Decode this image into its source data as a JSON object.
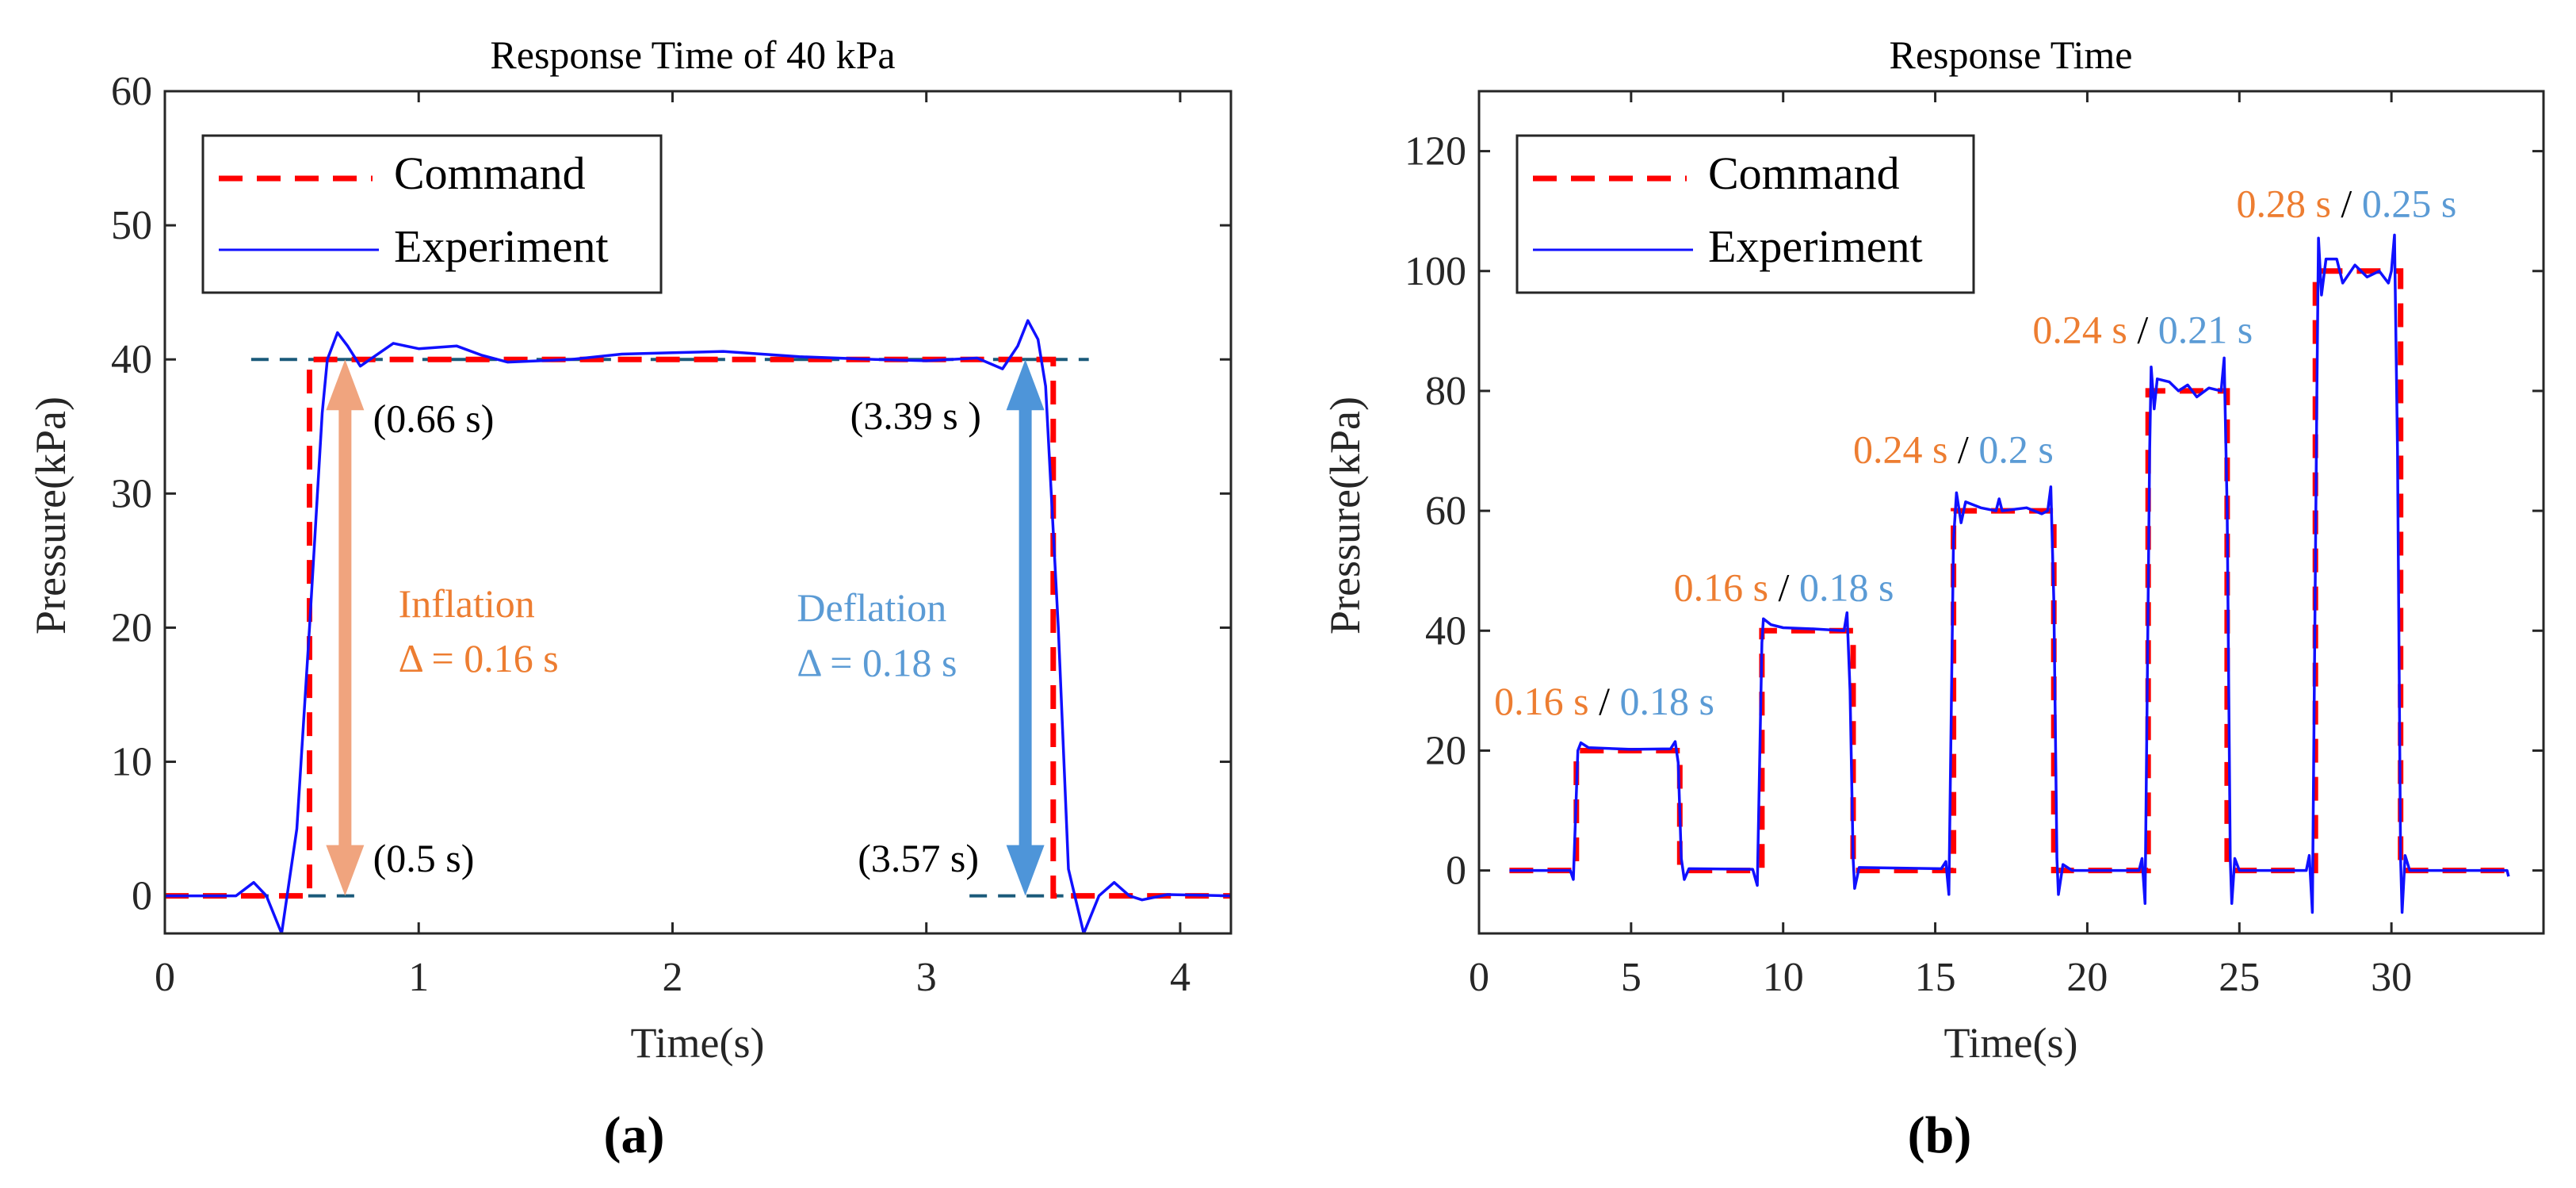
{
  "colors": {
    "command": "#ff0000",
    "experiment": "#1010ff",
    "reference": "#1a5a7a",
    "inflation": "#f0a47e",
    "inflation_text": "#ed7d31",
    "deflation": "#4e95d9",
    "deflation_text": "#5b9bd5",
    "axis": "#262626"
  },
  "chart_data": [
    {
      "type": "line",
      "panel_label": "(a)",
      "title": "Response Time of 40 kPa",
      "xlabel": "Time(s)",
      "ylabel": "Pressure(kPa)",
      "xlim": [
        0,
        4.2
      ],
      "ylim": [
        -2.8,
        60
      ],
      "xticks": [
        0,
        1,
        2,
        3,
        4
      ],
      "yticks": [
        0,
        10,
        20,
        30,
        40,
        50,
        60
      ],
      "grid": false,
      "legend": {
        "placement": "top-left",
        "entries": [
          "Command",
          "Experiment"
        ]
      },
      "series": [
        {
          "name": "Command",
          "style": "dashed",
          "points": [
            [
              0,
              0
            ],
            [
              0.57,
              0
            ],
            [
              0.57,
              40
            ],
            [
              3.5,
              40
            ],
            [
              3.5,
              0
            ],
            [
              4.2,
              0
            ]
          ]
        },
        {
          "name": "Experiment",
          "style": "solid",
          "points": [
            [
              0,
              0
            ],
            [
              0.28,
              0
            ],
            [
              0.35,
              1
            ],
            [
              0.4,
              0
            ],
            [
              0.46,
              -2.8
            ],
            [
              0.52,
              5
            ],
            [
              0.57,
              20
            ],
            [
              0.62,
              36
            ],
            [
              0.64,
              40
            ],
            [
              0.68,
              42
            ],
            [
              0.72,
              41
            ],
            [
              0.77,
              39.5
            ],
            [
              0.9,
              41.2
            ],
            [
              1.0,
              40.8
            ],
            [
              1.15,
              41
            ],
            [
              1.25,
              40.3
            ],
            [
              1.35,
              39.8
            ],
            [
              1.6,
              40
            ],
            [
              1.8,
              40.4
            ],
            [
              2.0,
              40.5
            ],
            [
              2.2,
              40.6
            ],
            [
              2.5,
              40.2
            ],
            [
              2.8,
              40
            ],
            [
              3.0,
              39.9
            ],
            [
              3.2,
              40.1
            ],
            [
              3.3,
              39.3
            ],
            [
              3.36,
              41
            ],
            [
              3.4,
              42.9
            ],
            [
              3.44,
              41.5
            ],
            [
              3.47,
              38
            ],
            [
              3.52,
              20
            ],
            [
              3.56,
              2
            ],
            [
              3.62,
              -2.8
            ],
            [
              3.68,
              0
            ],
            [
              3.74,
              1
            ],
            [
              3.8,
              0
            ],
            [
              3.85,
              -0.3
            ],
            [
              3.95,
              0.1
            ],
            [
              4.2,
              0
            ]
          ]
        }
      ],
      "reference_lines": [
        {
          "y": 40,
          "x": [
            0.34,
            3.64
          ]
        },
        {
          "y": 0,
          "x": [
            0.34,
            0.75
          ]
        },
        {
          "y": 0,
          "x": [
            3.17,
            3.54
          ]
        }
      ],
      "arrows": [
        {
          "name": "inflation",
          "x": 0.71,
          "y": [
            0,
            40
          ]
        },
        {
          "name": "deflation",
          "x": 3.39,
          "y": [
            0,
            40
          ]
        }
      ],
      "annotations": [
        {
          "text": "(0.66 s)",
          "x": 0.82,
          "y": 34.6,
          "color": "#000"
        },
        {
          "text": "(3.39 s )",
          "x": 2.7,
          "y": 34.8,
          "color": "#000"
        },
        {
          "text": "(0.5 s)",
          "x": 0.82,
          "y": 1.8,
          "color": "#000"
        },
        {
          "text": "(3.57 s)",
          "x": 2.73,
          "y": 1.8,
          "color": "#000"
        },
        {
          "text": "Inflation",
          "x": 0.92,
          "y": 20.8,
          "color": "#ed7d31"
        },
        {
          "text": "Δ = 0.16 s",
          "x": 0.92,
          "y": 16.7,
          "color": "#ed7d31"
        },
        {
          "text": "Deflation",
          "x": 2.49,
          "y": 20.5,
          "color": "#5b9bd5"
        },
        {
          "text": "Δ = 0.18 s",
          "x": 2.49,
          "y": 16.4,
          "color": "#5b9bd5"
        }
      ]
    },
    {
      "type": "line",
      "panel_label": "(b)",
      "title": "Response Time",
      "xlabel": "Time(s)",
      "ylabel": "Pressure(kPa)",
      "xlim": [
        0,
        35
      ],
      "ylim": [
        -10.5,
        130
      ],
      "xticks": [
        0,
        5,
        10,
        15,
        20,
        25,
        30
      ],
      "yticks": [
        0,
        20,
        40,
        60,
        80,
        100,
        120
      ],
      "grid": false,
      "legend": {
        "placement": "top-left",
        "entries": [
          "Command",
          "Experiment"
        ]
      },
      "series": [
        {
          "name": "Command",
          "style": "dashed",
          "points": [
            [
              1,
              0
            ],
            [
              3.2,
              0
            ],
            [
              3.2,
              20
            ],
            [
              6.6,
              20
            ],
            [
              6.6,
              0
            ],
            [
              9.3,
              0
            ],
            [
              9.3,
              40
            ],
            [
              12.3,
              40
            ],
            [
              12.3,
              0
            ],
            [
              15.6,
              0
            ],
            [
              15.6,
              60
            ],
            [
              18.9,
              60
            ],
            [
              18.9,
              0
            ],
            [
              22,
              0
            ],
            [
              22,
              80
            ],
            [
              24.6,
              80
            ],
            [
              24.6,
              0
            ],
            [
              27.5,
              0
            ],
            [
              27.5,
              100
            ],
            [
              30.3,
              100
            ],
            [
              30.3,
              0
            ],
            [
              33.8,
              0
            ]
          ]
        },
        {
          "name": "Experiment",
          "style": "solid",
          "points": [
            [
              1,
              0
            ],
            [
              3.0,
              0
            ],
            [
              3.1,
              -1.5
            ],
            [
              3.25,
              20
            ],
            [
              3.35,
              21.3
            ],
            [
              3.6,
              20.5
            ],
            [
              5,
              20.2
            ],
            [
              6.3,
              20.3
            ],
            [
              6.45,
              21.5
            ],
            [
              6.55,
              18
            ],
            [
              6.65,
              2
            ],
            [
              6.75,
              -1.5
            ],
            [
              6.9,
              0.3
            ],
            [
              9.0,
              0.2
            ],
            [
              9.15,
              -2.5
            ],
            [
              9.3,
              38
            ],
            [
              9.35,
              42
            ],
            [
              9.6,
              41
            ],
            [
              10,
              40.5
            ],
            [
              11,
              40.3
            ],
            [
              12,
              40
            ],
            [
              12.1,
              43
            ],
            [
              12.2,
              30
            ],
            [
              12.3,
              2
            ],
            [
              12.35,
              -3
            ],
            [
              12.5,
              0.5
            ],
            [
              15.2,
              0.3
            ],
            [
              15.35,
              1.5
            ],
            [
              15.45,
              -4
            ],
            [
              15.6,
              55
            ],
            [
              15.7,
              63
            ],
            [
              15.85,
              58
            ],
            [
              16,
              61.5
            ],
            [
              16.5,
              60.5
            ],
            [
              17,
              60
            ],
            [
              17.1,
              62
            ],
            [
              17.2,
              60
            ],
            [
              18,
              60.5
            ],
            [
              18.5,
              59.5
            ],
            [
              18.7,
              60
            ],
            [
              18.8,
              64
            ],
            [
              18.9,
              45
            ],
            [
              19,
              2
            ],
            [
              19.05,
              -4
            ],
            [
              19.2,
              1
            ],
            [
              19.5,
              0
            ],
            [
              21.7,
              0
            ],
            [
              21.8,
              2
            ],
            [
              21.9,
              -5.5
            ],
            [
              22.05,
              70
            ],
            [
              22.1,
              84
            ],
            [
              22.2,
              77
            ],
            [
              22.3,
              82
            ],
            [
              22.7,
              81.5
            ],
            [
              23,
              80
            ],
            [
              23.3,
              81
            ],
            [
              23.6,
              79
            ],
            [
              24,
              80.5
            ],
            [
              24.4,
              80
            ],
            [
              24.5,
              85.5
            ],
            [
              24.6,
              60
            ],
            [
              24.7,
              2
            ],
            [
              24.75,
              -5.5
            ],
            [
              24.85,
              2
            ],
            [
              25,
              0
            ],
            [
              27.2,
              0
            ],
            [
              27.3,
              2.5
            ],
            [
              27.4,
              -7
            ],
            [
              27.55,
              80
            ],
            [
              27.6,
              105.5
            ],
            [
              27.7,
              96
            ],
            [
              27.85,
              102
            ],
            [
              28.2,
              102
            ],
            [
              28.4,
              98
            ],
            [
              28.8,
              101
            ],
            [
              29.2,
              99
            ],
            [
              29.6,
              100
            ],
            [
              29.9,
              98
            ],
            [
              30.0,
              100
            ],
            [
              30.1,
              106
            ],
            [
              30.2,
              70
            ],
            [
              30.3,
              2
            ],
            [
              30.35,
              -7
            ],
            [
              30.45,
              2.5
            ],
            [
              30.6,
              0
            ],
            [
              33.8,
              0
            ],
            [
              33.85,
              -1
            ]
          ]
        }
      ],
      "step_labels": [
        {
          "inflation": "0.16 s",
          "deflation": "0.18 s",
          "x": 0.5,
          "y": 26
        },
        {
          "inflation": "0.16 s",
          "deflation": "0.18 s",
          "x": 6.4,
          "y": 45
        },
        {
          "inflation": "0.24 s",
          "deflation": "0.2 s",
          "x": 12.3,
          "y": 68
        },
        {
          "inflation": "0.24 s",
          "deflation": "0.21 s",
          "x": 18.2,
          "y": 88
        },
        {
          "inflation": "0.28 s",
          "deflation": "0.25 s",
          "x": 24.9,
          "y": 109
        }
      ],
      "separator": "/"
    }
  ]
}
